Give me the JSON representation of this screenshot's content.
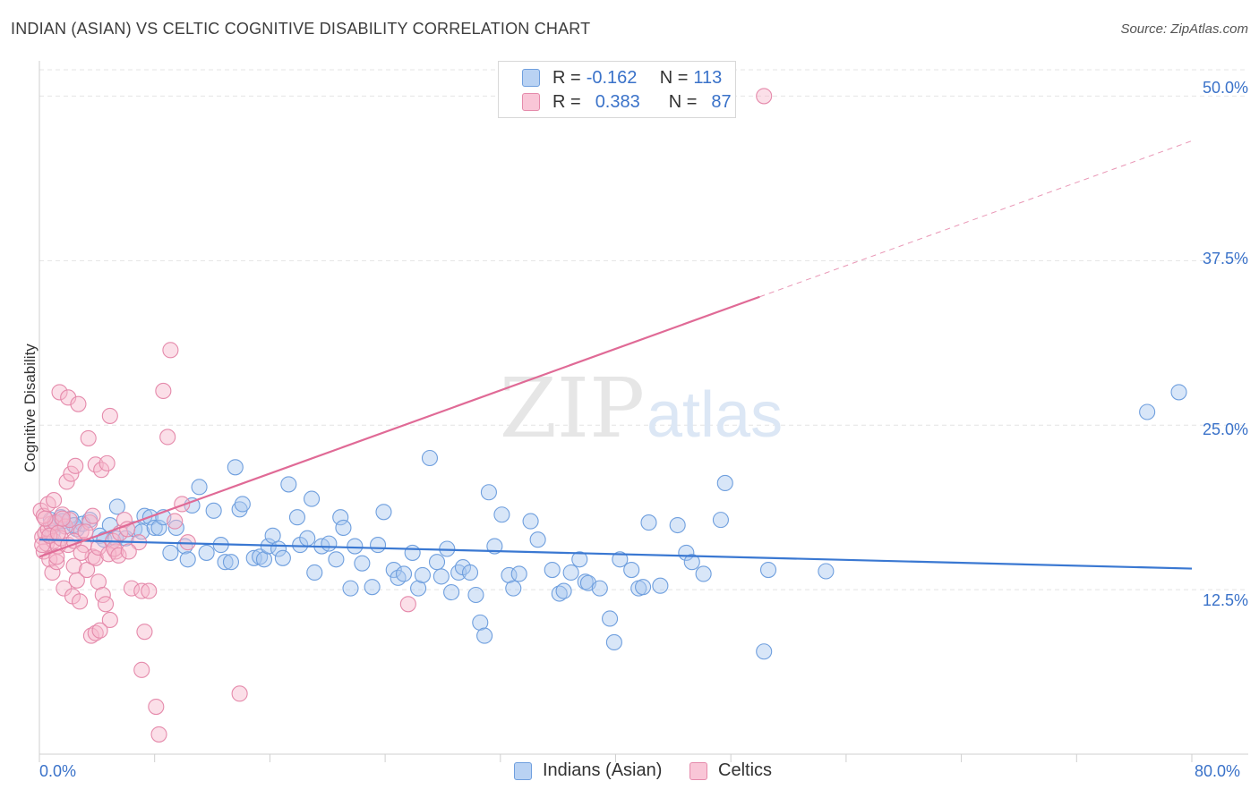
{
  "title": "INDIAN (ASIAN) VS CELTIC COGNITIVE DISABILITY CORRELATION CHART",
  "source": "Source: ZipAtlas.com",
  "watermark": {
    "zip": "ZIP",
    "atlas": "atlas"
  },
  "legend": {
    "rows": [
      {
        "r_label": "R =",
        "r_value": "-0.162",
        "n_label": "N =",
        "n_value": "113"
      },
      {
        "r_label": "R =",
        "r_value": "0.383",
        "n_label": "N =",
        "n_value": "87"
      }
    ]
  },
  "bottom_legend": {
    "blue": "Indians (Asian)",
    "pink": "Celtics"
  },
  "colors": {
    "blue": "#3a78d2",
    "blue_fill": "#a9c8f0",
    "pink": "#e06a96",
    "pink_fill": "#f7b8cd",
    "tick_text": "#3a72c9"
  },
  "chart_data": {
    "type": "scatter",
    "ylabel": "Cognitive Disability",
    "xlim": [
      0,
      80
    ],
    "ylim": [
      0,
      52
    ],
    "x_tick_labels": [
      "0.0%",
      "80.0%"
    ],
    "y_tick_labels": [
      "12.5%",
      "25.0%",
      "37.5%",
      "50.0%"
    ],
    "y_ticks": [
      12.5,
      25.0,
      37.5,
      50.0
    ],
    "grid": true,
    "series": [
      {
        "name": "Indians (Asian)",
        "color": "#3a78d2",
        "trend": {
          "x": [
            0,
            80
          ],
          "y": [
            16.3,
            14.1
          ],
          "solid_to": 80
        },
        "points": [
          [
            0.8,
            17.8
          ],
          [
            1.2,
            17.6
          ],
          [
            1.5,
            18.0
          ],
          [
            1.8,
            17.3
          ],
          [
            2.2,
            17.9
          ],
          [
            2.6,
            17.1
          ],
          [
            3.0,
            17.5
          ],
          [
            3.5,
            17.8
          ],
          [
            0.9,
            16.8
          ],
          [
            1.6,
            17.7
          ],
          [
            2.4,
            17.4
          ],
          [
            4.2,
            16.6
          ],
          [
            4.5,
            16.3
          ],
          [
            4.9,
            17.4
          ],
          [
            5.3,
            16.4
          ],
          [
            5.4,
            18.8
          ],
          [
            6.0,
            16.4
          ],
          [
            6.6,
            17.1
          ],
          [
            7.1,
            16.9
          ],
          [
            7.3,
            18.1
          ],
          [
            7.7,
            18.0
          ],
          [
            8.0,
            17.2
          ],
          [
            8.3,
            17.2
          ],
          [
            8.6,
            18.0
          ],
          [
            9.1,
            15.3
          ],
          [
            9.5,
            17.2
          ],
          [
            10.1,
            15.8
          ],
          [
            10.3,
            14.8
          ],
          [
            10.6,
            18.9
          ],
          [
            11.1,
            20.3
          ],
          [
            11.6,
            15.3
          ],
          [
            12.1,
            18.5
          ],
          [
            12.6,
            15.9
          ],
          [
            12.9,
            14.6
          ],
          [
            13.3,
            14.6
          ],
          [
            13.6,
            21.8
          ],
          [
            13.9,
            18.6
          ],
          [
            14.1,
            19.0
          ],
          [
            14.9,
            14.9
          ],
          [
            15.3,
            15.0
          ],
          [
            15.6,
            14.8
          ],
          [
            15.9,
            15.8
          ],
          [
            16.2,
            16.6
          ],
          [
            16.6,
            15.6
          ],
          [
            16.9,
            14.9
          ],
          [
            17.3,
            20.5
          ],
          [
            17.9,
            18.0
          ],
          [
            18.1,
            15.9
          ],
          [
            18.6,
            16.4
          ],
          [
            18.9,
            19.4
          ],
          [
            19.1,
            13.8
          ],
          [
            19.6,
            15.8
          ],
          [
            20.1,
            16.0
          ],
          [
            20.6,
            14.8
          ],
          [
            20.9,
            18.0
          ],
          [
            21.1,
            17.2
          ],
          [
            21.6,
            12.6
          ],
          [
            21.9,
            15.8
          ],
          [
            22.4,
            14.5
          ],
          [
            23.1,
            12.7
          ],
          [
            23.5,
            15.9
          ],
          [
            23.9,
            18.4
          ],
          [
            24.6,
            14.0
          ],
          [
            24.9,
            13.4
          ],
          [
            25.3,
            13.7
          ],
          [
            25.9,
            15.3
          ],
          [
            26.3,
            12.6
          ],
          [
            26.6,
            13.6
          ],
          [
            27.1,
            22.5
          ],
          [
            27.6,
            14.6
          ],
          [
            27.9,
            13.5
          ],
          [
            28.3,
            15.6
          ],
          [
            28.6,
            12.3
          ],
          [
            29.1,
            13.8
          ],
          [
            29.4,
            14.2
          ],
          [
            29.9,
            13.8
          ],
          [
            30.3,
            12.1
          ],
          [
            30.6,
            10.0
          ],
          [
            30.9,
            9.0
          ],
          [
            31.2,
            19.9
          ],
          [
            31.6,
            15.8
          ],
          [
            32.1,
            18.2
          ],
          [
            32.6,
            13.6
          ],
          [
            32.9,
            12.6
          ],
          [
            33.3,
            13.7
          ],
          [
            34.1,
            17.7
          ],
          [
            34.6,
            16.3
          ],
          [
            35.6,
            14.0
          ],
          [
            36.1,
            12.2
          ],
          [
            36.4,
            12.4
          ],
          [
            36.9,
            13.8
          ],
          [
            37.5,
            14.8
          ],
          [
            37.9,
            13.1
          ],
          [
            38.1,
            13.0
          ],
          [
            38.9,
            12.6
          ],
          [
            39.6,
            10.3
          ],
          [
            39.9,
            8.5
          ],
          [
            40.3,
            14.8
          ],
          [
            41.1,
            14.0
          ],
          [
            41.6,
            12.6
          ],
          [
            41.9,
            12.7
          ],
          [
            42.3,
            17.6
          ],
          [
            43.1,
            12.8
          ],
          [
            44.3,
            17.4
          ],
          [
            44.9,
            15.3
          ],
          [
            45.3,
            14.6
          ],
          [
            46.1,
            13.7
          ],
          [
            47.3,
            17.8
          ],
          [
            47.6,
            20.6
          ],
          [
            50.3,
            7.8
          ],
          [
            50.6,
            14.0
          ],
          [
            54.6,
            13.9
          ],
          [
            76.9,
            26.0
          ],
          [
            79.1,
            27.5
          ]
        ]
      },
      {
        "name": "Celtics",
        "color": "#e06a96",
        "trend": {
          "x": [
            0,
            80
          ],
          "y": [
            15.0,
            46.6
          ],
          "solid_to": 50
        },
        "points": [
          [
            0.2,
            16.5
          ],
          [
            0.4,
            16.8
          ],
          [
            0.6,
            17.1
          ],
          [
            0.3,
            15.4
          ],
          [
            0.5,
            16.0
          ],
          [
            0.8,
            17.5
          ],
          [
            1.0,
            16.2
          ],
          [
            1.1,
            17.6
          ],
          [
            0.7,
            14.8
          ],
          [
            1.3,
            15.8
          ],
          [
            1.6,
            18.2
          ],
          [
            1.8,
            17.3
          ],
          [
            0.9,
            13.8
          ],
          [
            1.2,
            14.6
          ],
          [
            1.5,
            16.4
          ],
          [
            2.0,
            15.9
          ],
          [
            2.1,
            17.8
          ],
          [
            2.4,
            14.3
          ],
          [
            2.6,
            13.2
          ],
          [
            1.9,
            20.7
          ],
          [
            2.2,
            21.3
          ],
          [
            2.5,
            21.9
          ],
          [
            2.9,
            16.9
          ],
          [
            3.1,
            15.9
          ],
          [
            3.3,
            14.0
          ],
          [
            1.7,
            12.6
          ],
          [
            2.3,
            12.0
          ],
          [
            2.8,
            11.6
          ],
          [
            3.5,
            17.6
          ],
          [
            3.7,
            15.0
          ],
          [
            3.9,
            14.9
          ],
          [
            4.1,
            13.1
          ],
          [
            4.4,
            12.1
          ],
          [
            4.6,
            11.4
          ],
          [
            4.9,
            10.2
          ],
          [
            3.6,
            9.0
          ],
          [
            3.9,
            9.2
          ],
          [
            4.2,
            9.4
          ],
          [
            1.4,
            27.5
          ],
          [
            2.0,
            27.1
          ],
          [
            2.7,
            26.6
          ],
          [
            3.4,
            24.0
          ],
          [
            3.9,
            22.0
          ],
          [
            4.3,
            21.6
          ],
          [
            4.9,
            25.7
          ],
          [
            4.7,
            22.1
          ],
          [
            5.1,
            16.2
          ],
          [
            5.3,
            15.4
          ],
          [
            5.6,
            16.8
          ],
          [
            5.9,
            17.8
          ],
          [
            6.1,
            17.1
          ],
          [
            6.4,
            12.6
          ],
          [
            6.9,
            16.1
          ],
          [
            7.1,
            12.4
          ],
          [
            7.6,
            12.4
          ],
          [
            7.3,
            9.3
          ],
          [
            7.1,
            6.4
          ],
          [
            8.1,
            3.6
          ],
          [
            8.3,
            1.5
          ],
          [
            8.6,
            27.6
          ],
          [
            8.9,
            24.1
          ],
          [
            9.1,
            30.7
          ],
          [
            9.4,
            17.7
          ],
          [
            9.9,
            19.0
          ],
          [
            10.3,
            16.1
          ],
          [
            13.9,
            4.6
          ],
          [
            25.6,
            11.4
          ],
          [
            50.3,
            50.0
          ],
          [
            0.1,
            18.5
          ],
          [
            0.3,
            18.1
          ],
          [
            0.6,
            19.0
          ],
          [
            1.0,
            19.3
          ],
          [
            0.2,
            15.9
          ],
          [
            0.4,
            17.9
          ],
          [
            0.7,
            16.6
          ],
          [
            1.3,
            16.8
          ],
          [
            1.6,
            17.9
          ],
          [
            1.2,
            15.0
          ],
          [
            2.4,
            16.2
          ],
          [
            2.9,
            15.3
          ],
          [
            3.2,
            16.9
          ],
          [
            3.7,
            18.1
          ],
          [
            4.1,
            15.7
          ],
          [
            4.8,
            15.2
          ],
          [
            5.2,
            15.6
          ],
          [
            5.5,
            15.1
          ],
          [
            6.2,
            15.4
          ]
        ]
      }
    ]
  }
}
